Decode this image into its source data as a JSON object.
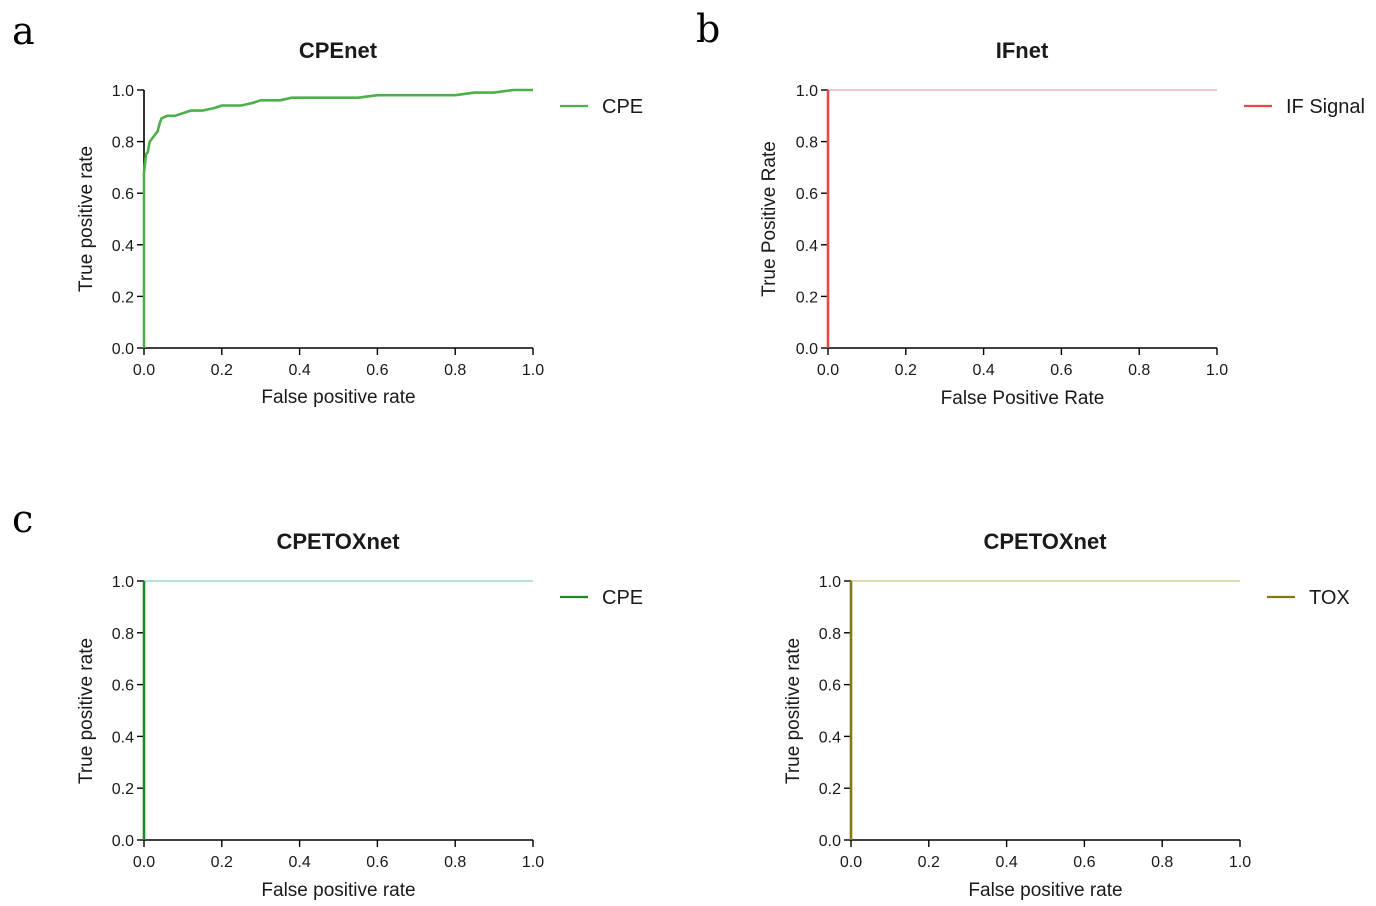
{
  "panel_letters": [
    "a",
    "b",
    "c"
  ],
  "chart_data": [
    {
      "type": "line",
      "title": "CPEnet",
      "xlabel": "False positive rate",
      "ylabel": "True positive rate",
      "xlim": [
        0,
        1
      ],
      "ylim": [
        0,
        1
      ],
      "xticks": [
        "0.0",
        "0.2",
        "0.4",
        "0.6",
        "0.8",
        "1.0"
      ],
      "yticks": [
        "0.0",
        "0.2",
        "0.4",
        "0.6",
        "0.8",
        "1.0"
      ],
      "grid": false,
      "legend_position": "top-right",
      "series": [
        {
          "name": "CPE",
          "color": "#4daf4a",
          "x": [
            0,
            0,
            0.003,
            0.005,
            0.01,
            0.012,
            0.015,
            0.025,
            0.03,
            0.035,
            0.04,
            0.045,
            0.06,
            0.08,
            0.1,
            0.12,
            0.15,
            0.18,
            0.2,
            0.25,
            0.28,
            0.3,
            0.33,
            0.35,
            0.38,
            0.4,
            0.45,
            0.5,
            0.55,
            0.6,
            0.65,
            0.7,
            0.8,
            0.85,
            0.9,
            0.95,
            1.0
          ],
          "y": [
            0,
            0.68,
            0.72,
            0.75,
            0.76,
            0.78,
            0.8,
            0.82,
            0.83,
            0.84,
            0.87,
            0.89,
            0.9,
            0.9,
            0.91,
            0.92,
            0.92,
            0.93,
            0.94,
            0.94,
            0.95,
            0.96,
            0.96,
            0.96,
            0.97,
            0.97,
            0.97,
            0.97,
            0.97,
            0.98,
            0.98,
            0.98,
            0.98,
            0.99,
            0.99,
            1.0,
            1.0
          ]
        }
      ]
    },
    {
      "type": "line",
      "title": "IFnet",
      "xlabel": "False Positive Rate",
      "ylabel": "True Positive Rate",
      "xlim": [
        0,
        1
      ],
      "ylim": [
        0,
        1
      ],
      "xticks": [
        "0.0",
        "0.2",
        "0.4",
        "0.6",
        "0.8",
        "1.0"
      ],
      "yticks": [
        "0.0",
        "0.2",
        "0.4",
        "0.6",
        "0.8",
        "1.0"
      ],
      "grid": false,
      "legend_position": "top-right",
      "series": [
        {
          "name": "IF Signal",
          "color": "#e8474c",
          "faint_color": "#f6c5c7",
          "x": [
            0,
            0,
            1
          ],
          "y": [
            0,
            1,
            1
          ]
        }
      ]
    },
    {
      "type": "line",
      "title": "CPETOXnet",
      "xlabel": "False positive rate",
      "ylabel": "True positive rate",
      "xlim": [
        0,
        1
      ],
      "ylim": [
        0,
        1
      ],
      "xticks": [
        "0.0",
        "0.2",
        "0.4",
        "0.6",
        "0.8",
        "1.0"
      ],
      "yticks": [
        "0.0",
        "0.2",
        "0.4",
        "0.6",
        "0.8",
        "1.0"
      ],
      "grid": false,
      "legend_position": "top-right",
      "series": [
        {
          "name": "CPE",
          "color": "#1f8a24",
          "faint_color": "#b7e0d6",
          "x": [
            0,
            0,
            1
          ],
          "y": [
            0,
            1,
            1
          ]
        }
      ]
    },
    {
      "type": "line",
      "title": "CPETOXnet",
      "xlabel": "False positive rate",
      "ylabel": "True positive rate",
      "xlim": [
        0,
        1
      ],
      "ylim": [
        0,
        1
      ],
      "xticks": [
        "0.0",
        "0.2",
        "0.4",
        "0.6",
        "0.8",
        "1.0"
      ],
      "yticks": [
        "0.0",
        "0.2",
        "0.4",
        "0.6",
        "0.8",
        "1.0"
      ],
      "grid": false,
      "legend_position": "top-right",
      "series": [
        {
          "name": "TOX",
          "color": "#7f7a12",
          "faint_color": "#dcdcb0",
          "x": [
            0,
            0,
            1
          ],
          "y": [
            0,
            1,
            1
          ]
        }
      ]
    }
  ]
}
